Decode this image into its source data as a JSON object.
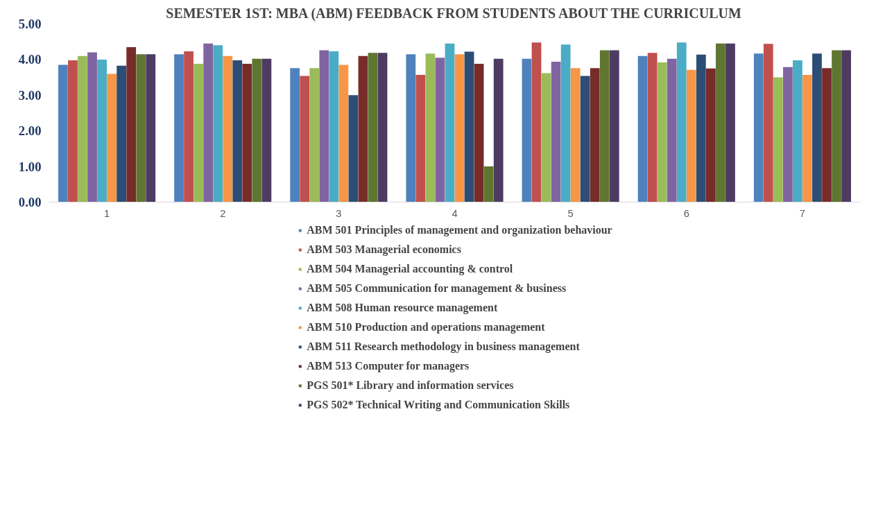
{
  "chart_data": {
    "type": "bar",
    "title": "SEMESTER 1ST: MBA (ABM) FEEDBACK FROM STUDENTS ABOUT THE CURRICULUM",
    "categories": [
      "1",
      "2",
      "3",
      "4",
      "5",
      "6",
      "7"
    ],
    "ylim": [
      0,
      5
    ],
    "yticks": [
      {
        "value": 0,
        "label": "0.00"
      },
      {
        "value": 1,
        "label": "1.00"
      },
      {
        "value": 2,
        "label": "2.00"
      },
      {
        "value": 3,
        "label": "3.00"
      },
      {
        "value": 4,
        "label": "4.00"
      },
      {
        "value": 5,
        "label": "5.00"
      }
    ],
    "grid": false,
    "legend": "bottom",
    "series": [
      {
        "name": "ABM 501 Principles of management and organization behaviour",
        "color": "#4f81bd",
        "values": [
          3.85,
          4.15,
          3.76,
          4.15,
          4.02,
          4.1,
          4.17
        ]
      },
      {
        "name": "ABM 503 Managerial economics",
        "color": "#c0504d",
        "values": [
          3.98,
          4.23,
          3.54,
          3.57,
          4.48,
          4.19,
          4.44
        ]
      },
      {
        "name": "ABM 504 Managerial accounting & control",
        "color": "#9bbb59",
        "values": [
          4.1,
          3.88,
          3.76,
          4.17,
          3.62,
          3.92,
          3.5
        ]
      },
      {
        "name": "ABM 505 Communication for management & business",
        "color": "#8064a2",
        "values": [
          4.2,
          4.45,
          4.26,
          4.05,
          3.94,
          4.02,
          3.79
        ]
      },
      {
        "name": "ABM 508 Human resource management",
        "color": "#4bacc6",
        "values": [
          4.0,
          4.4,
          4.23,
          4.45,
          4.42,
          4.48,
          3.98
        ]
      },
      {
        "name": "ABM 510 Production and operations management",
        "color": "#f79646",
        "values": [
          3.6,
          4.1,
          3.85,
          4.15,
          3.76,
          3.71,
          3.57
        ]
      },
      {
        "name": "ABM 511 Research methodology in business management",
        "color": "#2c4d75",
        "values": [
          3.83,
          3.98,
          3.0,
          4.22,
          3.54,
          4.14,
          4.17
        ]
      },
      {
        "name": "ABM 513 Computer for managers",
        "color": "#772c2a",
        "values": [
          4.35,
          3.88,
          4.1,
          3.88,
          3.76,
          3.75,
          3.76
        ]
      },
      {
        "name": "PGS 501* Library and information services",
        "color": "#5f7530",
        "values": [
          4.15,
          4.02,
          4.19,
          1.0,
          4.26,
          4.45,
          4.26
        ]
      },
      {
        "name": "PGS 502* Technical Writing and Communication Skills",
        "color": "#4d3b62",
        "values": [
          4.15,
          4.02,
          4.19,
          4.02,
          4.26,
          4.45,
          4.26
        ]
      }
    ]
  }
}
